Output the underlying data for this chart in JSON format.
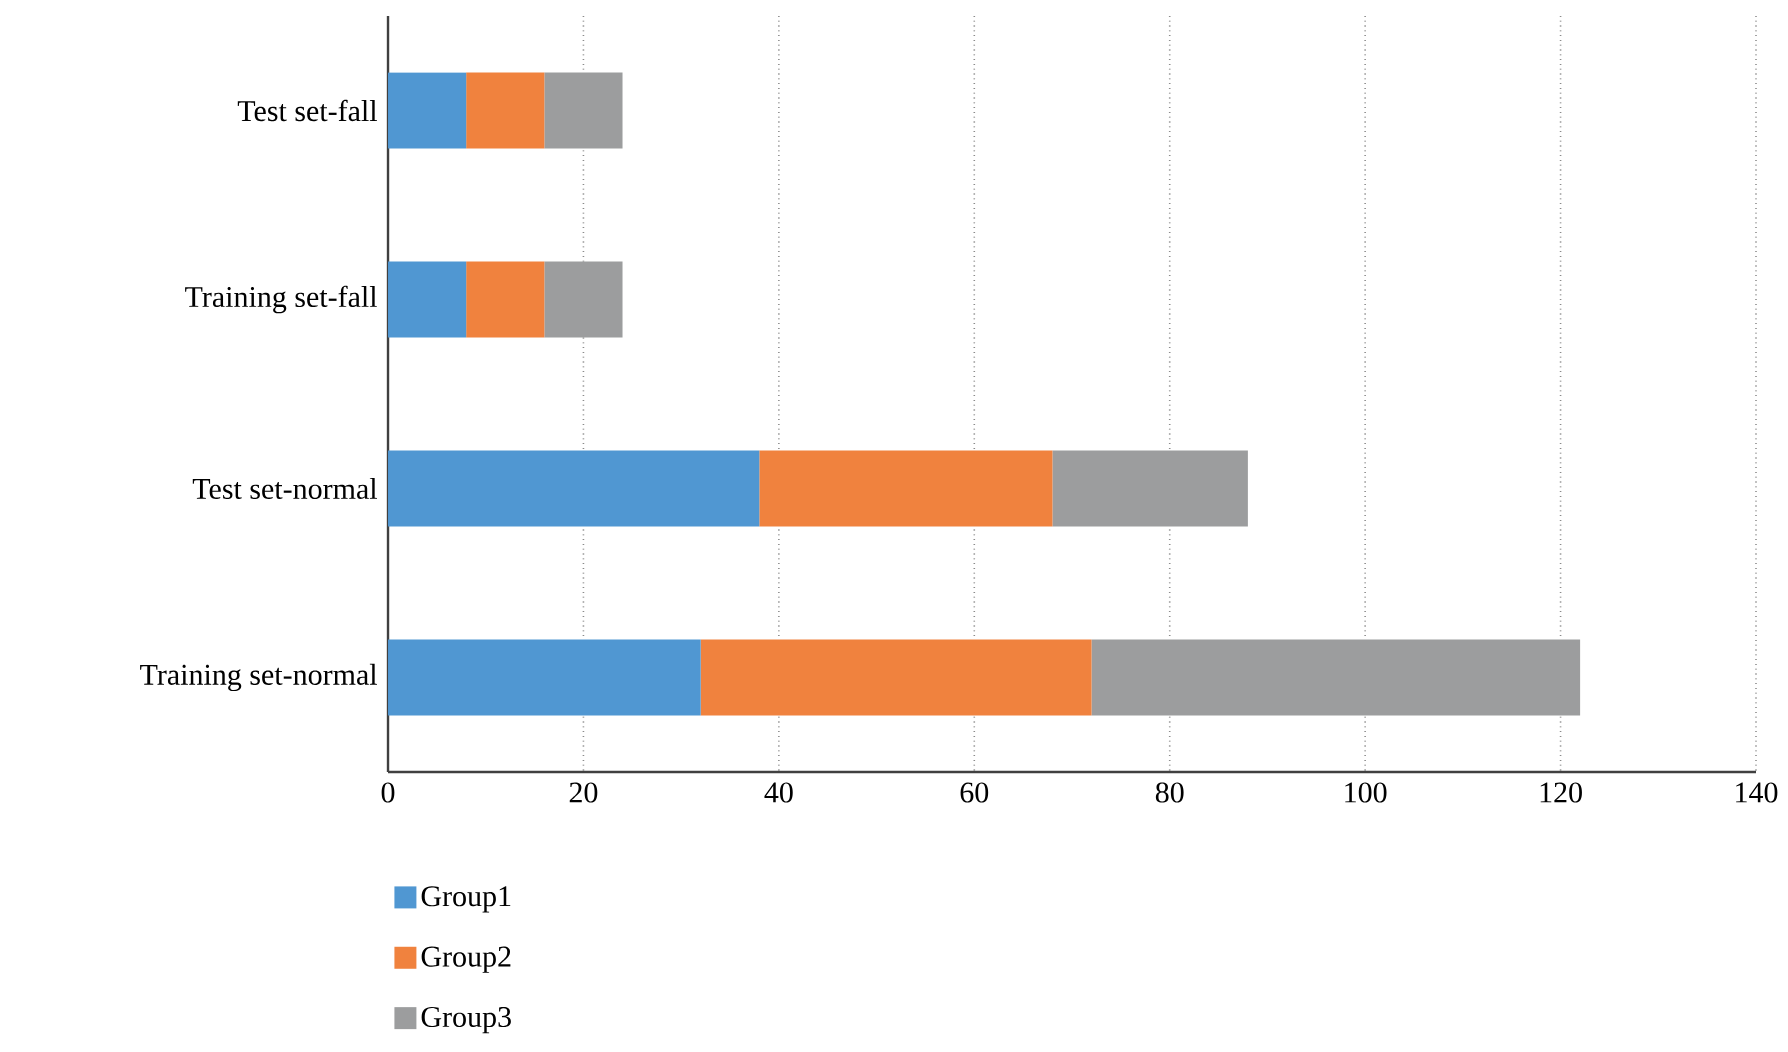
{
  "chart_data": {
    "type": "bar",
    "orientation": "horizontal",
    "stacked": true,
    "categories": [
      "Test set-fall",
      "Training set-fall",
      "Test set-normal",
      "Training set-normal"
    ],
    "series": [
      {
        "name": "Group1",
        "color": "#5097d2",
        "values": [
          8,
          8,
          38,
          32
        ]
      },
      {
        "name": "Group2",
        "color": "#f0823e",
        "values": [
          8,
          8,
          30,
          40
        ]
      },
      {
        "name": "Group3",
        "color": "#9c9d9e",
        "values": [
          8,
          8,
          20,
          50
        ]
      }
    ],
    "xlim": [
      0,
      140
    ],
    "xticks": [
      0,
      20,
      40,
      60,
      80,
      100,
      120,
      140
    ],
    "grid": "x",
    "legend": "bottom left"
  }
}
